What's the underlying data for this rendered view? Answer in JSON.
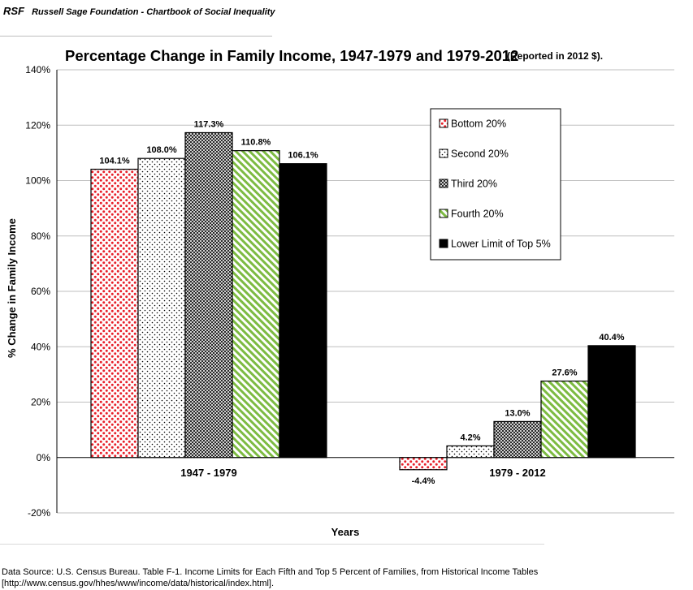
{
  "header": {
    "abbr": "RSF",
    "title": "Russell Sage Foundation - Chartbook of Social Inequality"
  },
  "footer": {
    "source_line1": "Data Source: U.S. Census Bureau. Table F-1. Income Limits for Each Fifth and Top 5 Percent of Families, from Historical Income Tables",
    "source_line2": "[http://www.census.gov/hhes/www/income/data/historical/index.html]."
  },
  "chart_data": {
    "type": "bar",
    "title": "Percentage Change in Family Income, 1947-1979 and 1979-2012",
    "subtitle": "(Reported in 2012 $).",
    "xlabel": "Years",
    "ylabel": "% Change in Family Income",
    "categories": [
      "1947 - 1979",
      "1979 - 2012"
    ],
    "ylim": [
      -20,
      140
    ],
    "yticks": [
      -20,
      0,
      20,
      40,
      60,
      80,
      100,
      120,
      140
    ],
    "ytick_labels": [
      "-20%",
      "0%",
      "20%",
      "40%",
      "60%",
      "80%",
      "100%",
      "120%",
      "140%"
    ],
    "grid": true,
    "legend_position": "top-right",
    "series": [
      {
        "name": "Bottom 20%",
        "values": [
          104.1,
          -4.4
        ],
        "labels": [
          "104.1%",
          "-4.4%"
        ],
        "pattern": "dots-red",
        "color": "#e8202a"
      },
      {
        "name": "Second 20%",
        "values": [
          108.0,
          4.2
        ],
        "labels": [
          "108.0%",
          "4.2%"
        ],
        "pattern": "dots-sparse",
        "color": "#000000"
      },
      {
        "name": "Third 20%",
        "values": [
          117.3,
          13.0
        ],
        "labels": [
          "117.3%",
          "13.0%"
        ],
        "pattern": "checker",
        "color": "#333333"
      },
      {
        "name": "Fourth 20%",
        "values": [
          110.8,
          27.6
        ],
        "labels": [
          "110.8%",
          "27.6%"
        ],
        "pattern": "diagonal-green",
        "color": "#7dbb42"
      },
      {
        "name": "Lower Limit of Top 5%",
        "values": [
          106.1,
          40.4
        ],
        "labels": [
          "106.1%",
          "40.4%"
        ],
        "pattern": "solid",
        "color": "#000000"
      }
    ]
  }
}
